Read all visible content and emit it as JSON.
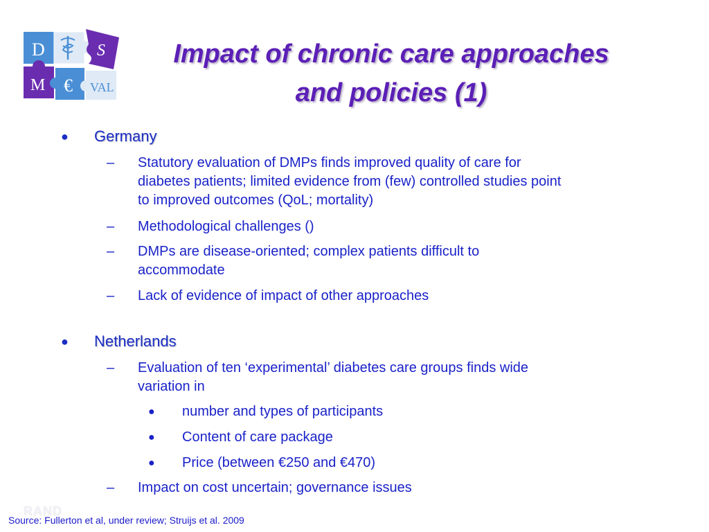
{
  "logo": {
    "letters": [
      "D",
      "S",
      "M",
      "€",
      "VAL"
    ],
    "colors": {
      "blue": "#4a8fd6",
      "purple": "#6a2db0",
      "light": "#dfeaf6"
    }
  },
  "title": {
    "line1": "Impact of chronic care approaches",
    "line2": "and policies (1)"
  },
  "sections": [
    {
      "heading": "Germany",
      "items": [
        {
          "lines": [
            "Statutory evaluation of DMPs finds improved quality of care for",
            "diabetes patients; limited evidence from (few) controlled studies point",
            "to improved outcomes (QoL; mortality)"
          ]
        },
        {
          "lines": [
            "Methodological challenges ()"
          ]
        },
        {
          "lines": [
            "DMPs are disease-oriented; complex patients difficult to",
            "accommodate"
          ]
        },
        {
          "lines": [
            "Lack of evidence of impact of other approaches"
          ]
        }
      ]
    },
    {
      "heading": "Netherlands",
      "items": [
        {
          "lines": [
            "Evaluation of ten ‘experimental’ diabetes care groups finds wide",
            "variation in"
          ],
          "subitems": [
            "number and types of participants",
            "Content of care package",
            "Price (between €250 and €470)"
          ]
        },
        {
          "lines": [
            "Impact on cost uncertain; governance issues"
          ]
        }
      ]
    }
  ],
  "markers": {
    "bullet": "●",
    "dash": "–",
    "sub_bullet": "●"
  },
  "watermark": "RAND",
  "source": "Source: Fullerton et al, under review; Struijs et al. 2009"
}
